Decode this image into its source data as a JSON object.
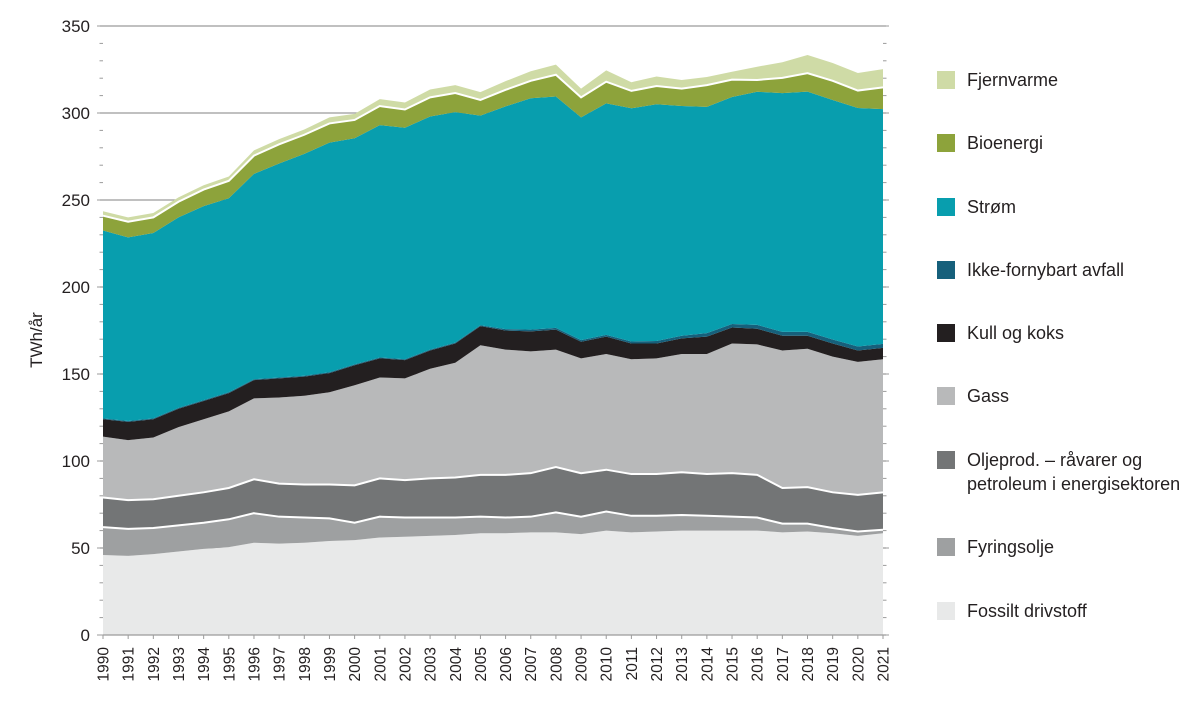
{
  "y_axis_title": "TWh/år",
  "colors": {
    "text": "#231f20",
    "gridline": "#9b9b9b",
    "separator": "#ffffff"
  },
  "legend_top_to_bottom": [
    {
      "label": "Fjernvarme",
      "key": "fjernvarme"
    },
    {
      "label": "Bioenergi",
      "key": "bioenergi"
    },
    {
      "label": "Strøm",
      "key": "strom"
    },
    {
      "label": "Ikke-fornybart avfall",
      "key": "ikke_fornybart_avfall"
    },
    {
      "label": "Kull og koks",
      "key": "kull_og_koks"
    },
    {
      "label": "Gass",
      "key": "gass"
    },
    {
      "label": "Oljeprod. – råvarer og petroleum i energisektoren",
      "key": "oljeprod"
    },
    {
      "label": "Fyringsolje",
      "key": "fyringsolje"
    },
    {
      "label": "Fossilt drivstoff",
      "key": "fossilt_drivstoff"
    }
  ],
  "chart_data": {
    "type": "area",
    "stacked": true,
    "title": "",
    "xlabel": "",
    "ylabel": "TWh/år",
    "ylim": [
      0,
      350
    ],
    "y_ticks": [
      0,
      50,
      100,
      150,
      200,
      250,
      300,
      350
    ],
    "grid": "horizontal",
    "legend_position": "right",
    "x": [
      1990,
      1991,
      1992,
      1993,
      1994,
      1995,
      1996,
      1997,
      1998,
      1999,
      2000,
      2001,
      2002,
      2003,
      2004,
      2005,
      2006,
      2007,
      2008,
      2009,
      2010,
      2011,
      2012,
      2013,
      2014,
      2015,
      2016,
      2017,
      2018,
      2019,
      2020,
      2021
    ],
    "series_bottom_to_top": [
      {
        "key": "fossilt_drivstoff",
        "name": "Fossilt drivstoff",
        "color": "#e8e9e9",
        "white_top_edge": false,
        "values": [
          46,
          45.5,
          46.5,
          48,
          49.5,
          50.5,
          53,
          52.5,
          53,
          54,
          54.5,
          56,
          56.5,
          57,
          57.5,
          58.5,
          58.5,
          59,
          59,
          58,
          60,
          59,
          59.5,
          60,
          60,
          60,
          60,
          59,
          59.5,
          58.5,
          57,
          58.5
        ]
      },
      {
        "key": "fyringsolje",
        "name": "Fyringsolje",
        "color": "#9ea0a1",
        "white_top_edge": true,
        "values": [
          16,
          15.5,
          15,
          15,
          15,
          16,
          17,
          15.5,
          14.5,
          13,
          10,
          12,
          11,
          10.5,
          10,
          9.5,
          9,
          9,
          11.5,
          10,
          11,
          9.5,
          9,
          9,
          8.5,
          8,
          7.5,
          5,
          4.5,
          3,
          2.5,
          2
        ]
      },
      {
        "key": "oljeprod",
        "name": "Oljeprod. – råvarer og petroleum i energisektoren",
        "color": "#737576",
        "white_top_edge": true,
        "values": [
          17,
          16.5,
          16.5,
          17,
          17.5,
          18,
          19.5,
          19,
          19,
          19.5,
          21.5,
          22,
          21.5,
          22.5,
          23,
          24,
          24.5,
          25,
          26,
          25,
          24,
          24,
          24,
          24.5,
          24,
          25,
          24.5,
          20.5,
          21,
          20.5,
          21,
          21.5
        ]
      },
      {
        "key": "gass",
        "name": "Gass",
        "color": "#b8b9ba",
        "white_top_edge": false,
        "values": [
          35,
          34.5,
          35.5,
          39.5,
          42,
          44,
          46.5,
          49.5,
          51,
          53,
          57.5,
          58,
          58.5,
          63,
          66,
          74.5,
          72,
          70,
          67.5,
          66,
          66.5,
          66,
          66.5,
          68,
          69,
          74.5,
          75,
          79,
          79.5,
          78,
          76.5,
          76.5
        ]
      },
      {
        "key": "kull_og_koks",
        "name": "Kull og koks",
        "color": "#231f20",
        "white_top_edge": false,
        "values": [
          10,
          10.5,
          10.5,
          10.5,
          10.5,
          10.5,
          10.5,
          11,
          11,
          11,
          11.5,
          11,
          10.5,
          10.5,
          11,
          11,
          11,
          11.5,
          11.5,
          9.5,
          10,
          9,
          8.5,
          9,
          10,
          9.2,
          9,
          8.5,
          7.5,
          7.5,
          6.5,
          6.5
        ]
      },
      {
        "key": "ikke_fornybart_avfall",
        "name": "Ikke-fornybart avfall",
        "color": "#16607b",
        "white_top_edge": false,
        "values": [
          0.5,
          0.5,
          0.5,
          0.5,
          0.5,
          0.5,
          0.5,
          0.5,
          0.5,
          0.5,
          0.5,
          0.5,
          0.5,
          0.5,
          0.5,
          0.5,
          0.8,
          1,
          1,
          1,
          1,
          1.2,
          1.5,
          1.5,
          2,
          2,
          2.2,
          2.2,
          2.2,
          2.3,
          2.3,
          2.3
        ]
      },
      {
        "key": "strom",
        "name": "Strøm",
        "color": "#089eae",
        "white_top_edge": false,
        "values": [
          108,
          105.5,
          106.5,
          109.5,
          111.5,
          111.5,
          118,
          123,
          127.5,
          132,
          130,
          133.5,
          133,
          134,
          132.5,
          120.5,
          128,
          133,
          133,
          128,
          133,
          134,
          136,
          132,
          130,
          130.5,
          134,
          137.2,
          138.1,
          137.7,
          137.1,
          134.9
        ]
      },
      {
        "key": "bioenergi",
        "name": "Bioenergi",
        "color": "#8da33b",
        "white_top_edge": true,
        "values": [
          8.5,
          9,
          9,
          9,
          9.5,
          10,
          10.5,
          11,
          11,
          11,
          10.5,
          11,
          10.5,
          11,
          11,
          9,
          9.5,
          10,
          12.5,
          11.5,
          12.5,
          10,
          10.5,
          10,
          12.5,
          10,
          6.8,
          8.8,
          10.6,
          11,
          10,
          12.5
        ]
      },
      {
        "key": "fjernvarme",
        "name": "Fjernvarme",
        "color": "#cfdba6",
        "white_top_edge": false,
        "values": [
          2.5,
          2.5,
          2.5,
          2.5,
          2.5,
          2.5,
          3,
          3,
          3,
          3.5,
          3.5,
          4,
          4,
          4.5,
          4.5,
          4.5,
          5,
          5.5,
          5.8,
          5,
          6.5,
          5,
          5.5,
          5,
          4.7,
          4.5,
          7.6,
          9,
          10.4,
          10.2,
          10.1,
          10.5
        ]
      }
    ]
  }
}
